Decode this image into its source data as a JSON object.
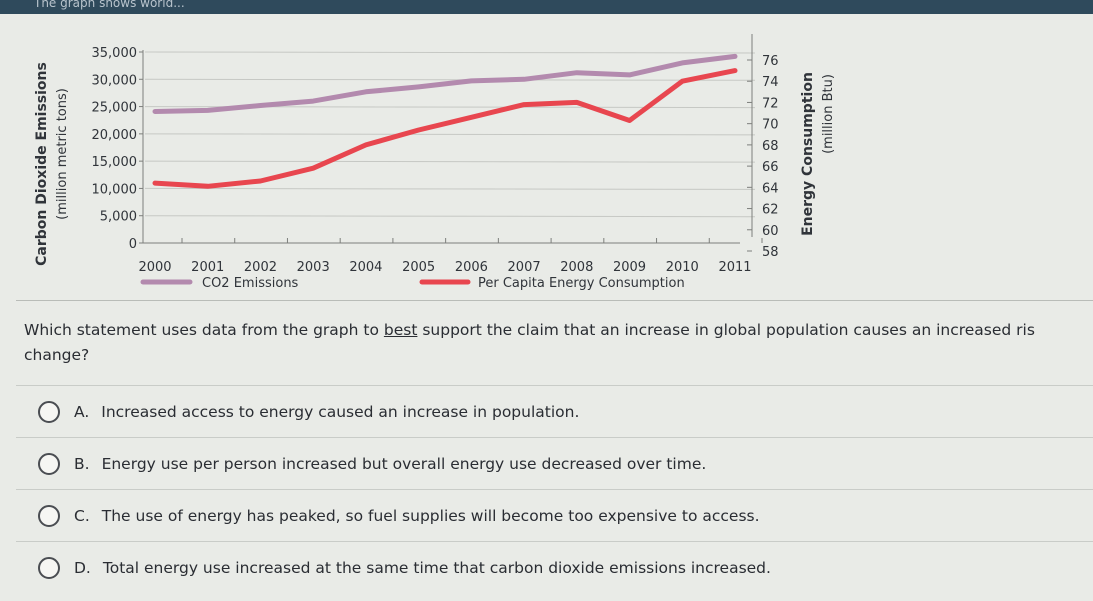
{
  "header": {
    "text": "The graph shows world..."
  },
  "chart_data": {
    "type": "line",
    "categories": [
      "2000",
      "2001",
      "2002",
      "2003",
      "2004",
      "2005",
      "2006",
      "2007",
      "2008",
      "2009",
      "2010",
      "2011"
    ],
    "left_axis": {
      "label_line1": "Carbon Dioxide Emissions",
      "label_line2": "(million metric tons)",
      "ticks": [
        "0",
        "5,000",
        "10,000",
        "15,000",
        "20,000",
        "25,000",
        "30,000",
        "35,000"
      ],
      "tick_values": [
        0,
        5000,
        10000,
        15000,
        20000,
        25000,
        30000,
        35000
      ],
      "ylim": [
        0,
        35000
      ]
    },
    "right_axis": {
      "label_line1": "Energy Consumption",
      "label_line2": "(million Btu)",
      "ticks": [
        "58",
        "60",
        "62",
        "64",
        "66",
        "68",
        "70",
        "72",
        "74",
        "76"
      ],
      "tick_values": [
        58,
        60,
        62,
        64,
        66,
        68,
        70,
        72,
        74,
        76
      ],
      "ylim": [
        58,
        76
      ]
    },
    "series": [
      {
        "name": "CO2 Emissions",
        "axis": "left",
        "color": "#b38aae",
        "x": [
          2000,
          2001,
          2002,
          2003,
          2004,
          2005,
          2006,
          2007,
          2008,
          2009,
          2010,
          2011
        ],
        "values": [
          24100,
          24300,
          25200,
          26000,
          27700,
          28600,
          29700,
          30000,
          31200,
          30800,
          33000,
          34200
        ]
      },
      {
        "name": "Per Capita Energy Consumption",
        "axis": "right",
        "color": "#e8464f",
        "x": [
          2000,
          2001,
          2002,
          2003,
          2004,
          2005,
          2006,
          2007,
          2008,
          2009,
          2010,
          2011
        ],
        "values": [
          64.4,
          64.1,
          64.6,
          65.8,
          68.0,
          69.4,
          70.6,
          71.8,
          72.0,
          70.3,
          74.0,
          75.0
        ]
      }
    ],
    "legend_position": "bottom",
    "grid": true
  },
  "question": {
    "text_before": "Which statement uses data from the graph to ",
    "underlined": "best",
    "text_after": " support the claim that an increase in global population causes an increased ris",
    "line2": "change?"
  },
  "choices": [
    {
      "letter": "A.",
      "text": "Increased access to energy caused an increase in population."
    },
    {
      "letter": "B.",
      "text": "Energy use per person increased but overall energy use decreased over time."
    },
    {
      "letter": "C.",
      "text": "The use of energy has peaked, so fuel supplies will become too expensive to access."
    },
    {
      "letter": "D.",
      "text": "Total energy use increased at the same time that carbon dioxide emissions increased."
    }
  ]
}
